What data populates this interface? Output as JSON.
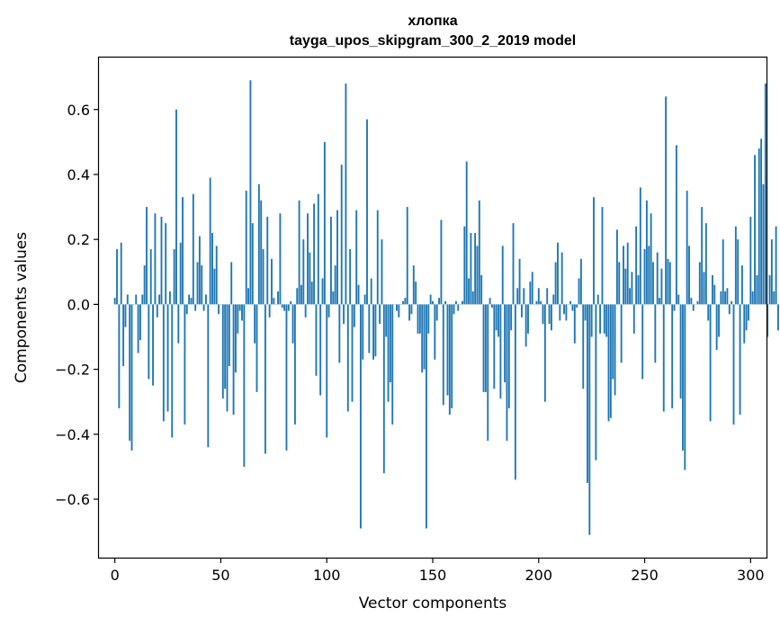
{
  "chart_data": {
    "type": "bar",
    "title": "хлопка",
    "subtitle": "tayga_upos_skipgram_300_2_2019 model",
    "xlabel": "Vector components",
    "ylabel": "Components values",
    "xlim": [
      -7.5,
      307.5
    ],
    "ylim": [
      -0.78,
      0.76
    ],
    "xticks": [
      0,
      50,
      100,
      150,
      200,
      250,
      300
    ],
    "xtick_labels": [
      "0",
      "50",
      "100",
      "150",
      "200",
      "250",
      "300"
    ],
    "yticks": [
      -0.6,
      -0.4,
      -0.2,
      0.0,
      0.2,
      0.4,
      0.6
    ],
    "ytick_labels": [
      "−0.6",
      "−0.4",
      "−0.2",
      "0.0",
      "0.2",
      "0.4",
      "0.6"
    ],
    "grid": false,
    "bar_color": "#1f77b4",
    "x_start": 0,
    "values": [
      0.02,
      0.17,
      -0.32,
      0.19,
      -0.19,
      -0.07,
      0.03,
      -0.42,
      -0.45,
      0.0,
      0.03,
      -0.15,
      -0.11,
      0.03,
      0.12,
      0.3,
      -0.23,
      0.17,
      -0.25,
      0.28,
      -0.04,
      0.03,
      0.27,
      -0.36,
      0.25,
      -0.33,
      0.04,
      -0.41,
      0.17,
      0.6,
      -0.12,
      0.19,
      0.33,
      -0.37,
      -0.03,
      0.03,
      0.02,
      0.34,
      -0.02,
      0.13,
      0.21,
      0.12,
      -0.02,
      0.03,
      -0.44,
      0.39,
      0.22,
      0.11,
      0.18,
      -0.03,
      0.0,
      -0.29,
      -0.26,
      -0.33,
      -0.19,
      0.13,
      -0.34,
      -0.21,
      -0.09,
      -0.02,
      -0.05,
      -0.5,
      0.35,
      0.05,
      0.69,
      0.25,
      -0.12,
      -0.27,
      0.37,
      0.32,
      0.17,
      -0.46,
      0.27,
      -0.04,
      0.14,
      0.02,
      0.0,
      0.04,
      0.28,
      -0.01,
      -0.02,
      -0.45,
      -0.02,
      0.01,
      -0.12,
      -0.37,
      0.05,
      0.32,
      0.06,
      0.2,
      -0.04,
      0.28,
      0.16,
      0.07,
      0.31,
      -0.22,
      0.34,
      -0.28,
      0.08,
      0.5,
      -0.41,
      -0.04,
      0.27,
      0.04,
      0.12,
      0.29,
      -0.18,
      0.43,
      -0.06,
      0.68,
      -0.33,
      0.17,
      -0.3,
      -0.07,
      0.29,
      0.06,
      -0.69,
      -0.17,
      0.03,
      0.57,
      -0.15,
      0.08,
      -0.17,
      -0.16,
      0.29,
      -0.06,
      0.2,
      -0.52,
      -0.1,
      -0.3,
      -0.24,
      -0.37,
      0.0,
      -0.02,
      -0.04,
      0.0,
      0.01,
      0.02,
      0.3,
      -0.05,
      -0.03,
      0.12,
      0.07,
      -0.09,
      -0.09,
      -0.21,
      -0.2,
      -0.69,
      -0.09,
      0.03,
      0.01,
      -0.17,
      -0.05,
      0.02,
      0.26,
      -0.31,
      0.01,
      -0.28,
      -0.34,
      -0.32,
      -0.03,
      0.01,
      -0.02,
      0.0,
      0.01,
      0.24,
      0.44,
      0.08,
      0.22,
      0.04,
      0.22,
      0.18,
      0.32,
      0.09,
      -0.27,
      -0.27,
      -0.42,
      0.02,
      -0.01,
      -0.26,
      -0.08,
      -0.1,
      -0.29,
      0.18,
      -0.24,
      -0.42,
      -0.32,
      -0.08,
      0.25,
      -0.54,
      0.05,
      0.14,
      -0.04,
      0.05,
      -0.13,
      -0.09,
      0.07,
      0.1,
      0.0,
      0.01,
      0.05,
      0.01,
      -0.06,
      -0.3,
      0.05,
      -0.06,
      -0.08,
      0.03,
      0.13,
      0.19,
      -0.05,
      0.16,
      -0.03,
      -0.05,
      0.0,
      0.01,
      -0.02,
      -0.12,
      -0.01,
      0.08,
      0.14,
      -0.26,
      -0.05,
      -0.55,
      -0.71,
      -0.1,
      0.33,
      -0.48,
      0.03,
      -0.09,
      0.3,
      -0.09,
      -0.1,
      -0.36,
      -0.35,
      -0.23,
      -0.28,
      0.23,
      0.13,
      -0.18,
      0.18,
      0.11,
      0.19,
      0.05,
      0.1,
      -0.09,
      0.24,
      0.09,
      0.36,
      -0.23,
      0.17,
      0.32,
      0.18,
      0.28,
      0.13,
      -0.18,
      0.16,
      0.02,
      0.11,
      -0.33,
      0.64,
      0.14,
      0.13,
      -0.32,
      -0.02,
      0.49,
      0.03,
      -0.29,
      -0.45,
      -0.51,
      0.35,
      0.18,
      0.02,
      -0.02,
      0.0,
      0.01,
      0.13,
      0.3,
      0.1,
      0.25,
      -0.05,
      -0.36,
      0.09,
      0.06,
      -0.14,
      -0.1,
      0.04,
      0.2,
      0.04,
      0.05,
      -0.03,
      0.01,
      -0.37,
      0.24,
      0.2,
      -0.34,
      0.12,
      -0.12,
      -0.08,
      -0.05,
      0.27,
      0.04,
      0.46,
      0.09,
      0.48,
      0.51,
      0.37,
      0.68,
      -0.1,
      0.09,
      0.2,
      0.04,
      0.24,
      -0.08
    ]
  }
}
